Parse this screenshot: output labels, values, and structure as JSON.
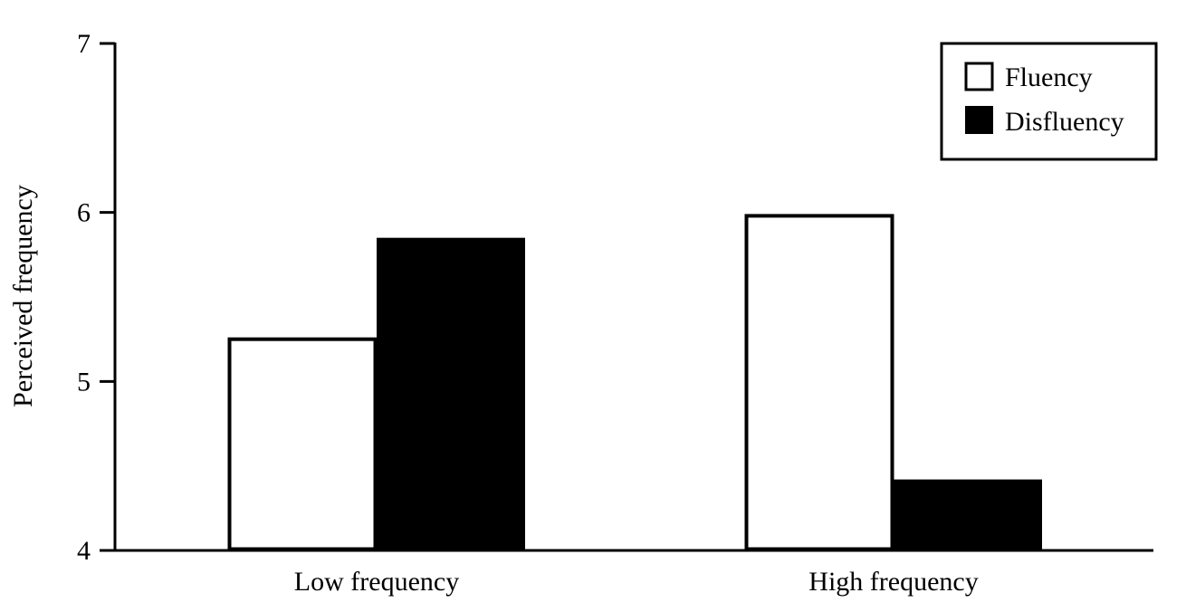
{
  "chart_data": {
    "type": "bar",
    "title": "",
    "xlabel": "",
    "ylabel": "Perceived frequency",
    "categories": [
      "Low frequency",
      "High frequency"
    ],
    "series": [
      {
        "name": "Fluency",
        "values": [
          5.25,
          5.98
        ],
        "color": "#ffffff"
      },
      {
        "name": "Disfluency",
        "values": [
          5.85,
          4.42
        ],
        "color": "#000000"
      }
    ],
    "ylim": [
      4,
      7
    ],
    "yticks": [
      "4",
      "5",
      "6",
      "7"
    ],
    "grid": false,
    "legend": "top-right"
  }
}
